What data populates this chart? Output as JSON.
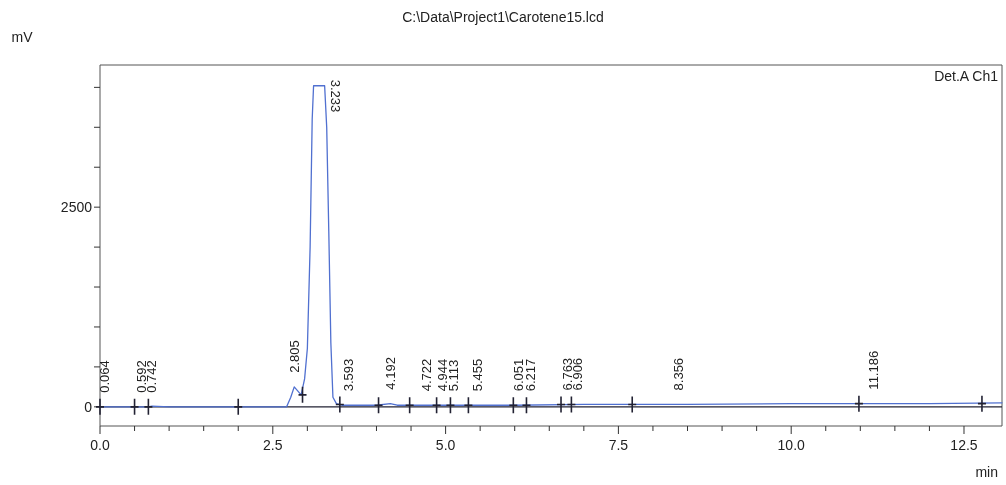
{
  "chart_data": {
    "type": "line",
    "title": "C:\\Data\\Project1\\Carotene15.lcd",
    "xlabel": "min",
    "ylabel": "mV",
    "xlim": [
      0,
      13.05
    ],
    "ylim": [
      -240,
      4280
    ],
    "xticks": [
      {
        "value": 0,
        "label": "0.0"
      },
      {
        "value": 0.5,
        "label": null
      },
      {
        "value": 1,
        "label": null
      },
      {
        "value": 1.5,
        "label": null
      },
      {
        "value": 2,
        "label": null
      },
      {
        "value": 2.5,
        "label": "2.5"
      },
      {
        "value": 3,
        "label": null
      },
      {
        "value": 3.5,
        "label": null
      },
      {
        "value": 4,
        "label": null
      },
      {
        "value": 4.5,
        "label": null
      },
      {
        "value": 5,
        "label": "5.0"
      },
      {
        "value": 5.5,
        "label": null
      },
      {
        "value": 6,
        "label": null
      },
      {
        "value": 6.5,
        "label": null
      },
      {
        "value": 7,
        "label": null
      },
      {
        "value": 7.5,
        "label": "7.5"
      },
      {
        "value": 8,
        "label": null
      },
      {
        "value": 8.5,
        "label": null
      },
      {
        "value": 9,
        "label": null
      },
      {
        "value": 9.5,
        "label": null
      },
      {
        "value": 10,
        "label": "10.0"
      },
      {
        "value": 10.5,
        "label": null
      },
      {
        "value": 11,
        "label": null
      },
      {
        "value": 11.5,
        "label": null
      },
      {
        "value": 12,
        "label": null
      },
      {
        "value": 12.5,
        "label": "12.5"
      }
    ],
    "yticks": [
      0,
      {
        "value": 500,
        "label": null
      },
      {
        "value": 1000,
        "label": null
      },
      {
        "value": 1500,
        "label": null
      },
      {
        "value": 2000,
        "label": null
      },
      2500,
      {
        "value": 3000,
        "label": null
      },
      {
        "value": 3500,
        "label": null
      },
      {
        "value": 4000,
        "label": null
      }
    ],
    "grid": false,
    "ref_lines": [
      {
        "axis": "y",
        "value": 0,
        "color": "#222233"
      }
    ],
    "series": [
      {
        "color": "#5070d0",
        "x": [
          0,
          0.5,
          0.7,
          0.75,
          1.0,
          2.0,
          2.7,
          2.76,
          2.81,
          2.86,
          2.91,
          2.96,
          3.0,
          3.04,
          3.07,
          3.09,
          3.25,
          3.28,
          3.31,
          3.34,
          3.37,
          3.42,
          3.5,
          3.6,
          4.0,
          4.2,
          4.3,
          4.5,
          5.0,
          6.0,
          7.0,
          7.7,
          8.5,
          10.0,
          11.0,
          12.0,
          13.05
        ],
        "values": [
          0,
          0,
          0,
          10,
          0,
          0,
          0,
          120,
          250,
          200,
          150,
          350,
          730,
          2000,
          3600,
          4020,
          4020,
          3500,
          2200,
          800,
          120,
          40,
          20,
          20,
          20,
          40,
          20,
          20,
          20,
          20,
          30,
          30,
          30,
          40,
          40,
          40,
          50
        ]
      },
      {
        "type": "scatter",
        "marker": "cross",
        "color": "#222233",
        "x": [
          0.0,
          0.5,
          0.7,
          2.0,
          2.93,
          3.47,
          4.03,
          4.48,
          4.87,
          5.07,
          5.33,
          5.98,
          6.17,
          6.67,
          6.82,
          7.7,
          10.98,
          12.76
        ],
        "values": [
          0,
          0,
          0,
          0,
          150,
          30,
          20,
          20,
          20,
          20,
          20,
          20,
          20,
          30,
          30,
          30,
          40,
          40
        ]
      }
    ],
    "annotations": [
      "Det.A Ch1",
      {
        "text": "0.064",
        "x": 0.064,
        "y": 0
      },
      {
        "text": "0.592",
        "x": 0.592,
        "y": 0
      },
      {
        "text": "0.742",
        "x": 0.742,
        "y": 0
      },
      {
        "text": "2.805",
        "x": 2.805,
        "y": 250
      },
      {
        "text": "3.233",
        "x": 3.233,
        "y": 4020
      },
      {
        "text": "3.593",
        "x": 3.593,
        "y": 20
      },
      {
        "text": "4.192",
        "x": 4.192,
        "y": 40
      },
      {
        "text": "4.722",
        "x": 4.722,
        "y": 20
      },
      {
        "text": "4.944",
        "x": 4.944,
        "y": 20
      },
      {
        "text": "5.113",
        "x": 5.113,
        "y": 20
      },
      {
        "text": "5.455",
        "x": 5.455,
        "y": 20
      },
      {
        "text": "6.051",
        "x": 6.051,
        "y": 20
      },
      {
        "text": "6.217",
        "x": 6.217,
        "y": 20
      },
      {
        "text": "6.763",
        "x": 6.763,
        "y": 30
      },
      {
        "text": "6.906",
        "x": 6.906,
        "y": 30
      },
      {
        "text": "8.356",
        "x": 8.356,
        "y": 30
      },
      {
        "text": "11.186",
        "x": 11.186,
        "y": 40
      }
    ]
  }
}
